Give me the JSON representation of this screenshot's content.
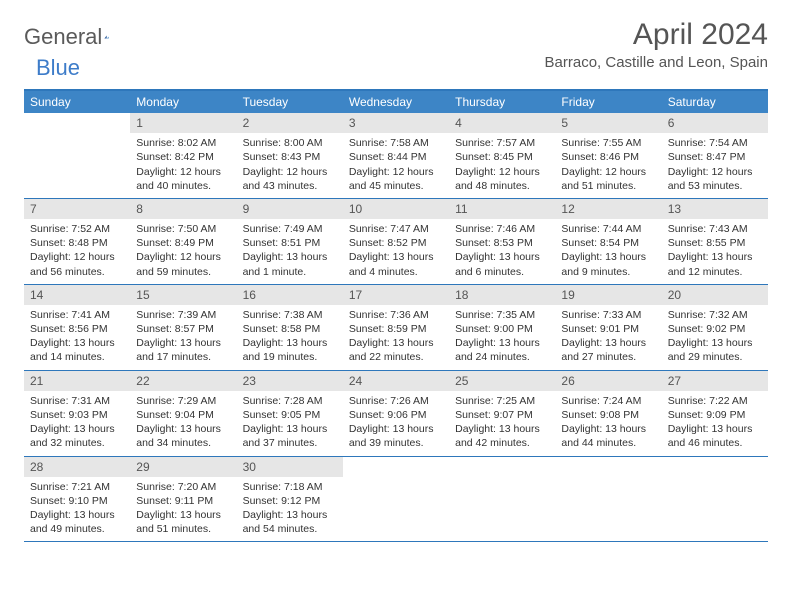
{
  "brand": {
    "part1": "General",
    "part2": "Blue"
  },
  "title": "April 2024",
  "location": "Barraco, Castille and Leon, Spain",
  "colors": {
    "header_bar": "#3d85c6",
    "accent_line": "#2e77bb",
    "daynum_bg": "#e6e6e6",
    "text": "#333333",
    "title_text": "#555555"
  },
  "days_of_week": [
    "Sunday",
    "Monday",
    "Tuesday",
    "Wednesday",
    "Thursday",
    "Friday",
    "Saturday"
  ],
  "weeks": [
    [
      {
        "n": "",
        "sr": "",
        "ss": "",
        "d1": "",
        "d2": ""
      },
      {
        "n": "1",
        "sr": "Sunrise: 8:02 AM",
        "ss": "Sunset: 8:42 PM",
        "d1": "Daylight: 12 hours",
        "d2": "and 40 minutes."
      },
      {
        "n": "2",
        "sr": "Sunrise: 8:00 AM",
        "ss": "Sunset: 8:43 PM",
        "d1": "Daylight: 12 hours",
        "d2": "and 43 minutes."
      },
      {
        "n": "3",
        "sr": "Sunrise: 7:58 AM",
        "ss": "Sunset: 8:44 PM",
        "d1": "Daylight: 12 hours",
        "d2": "and 45 minutes."
      },
      {
        "n": "4",
        "sr": "Sunrise: 7:57 AM",
        "ss": "Sunset: 8:45 PM",
        "d1": "Daylight: 12 hours",
        "d2": "and 48 minutes."
      },
      {
        "n": "5",
        "sr": "Sunrise: 7:55 AM",
        "ss": "Sunset: 8:46 PM",
        "d1": "Daylight: 12 hours",
        "d2": "and 51 minutes."
      },
      {
        "n": "6",
        "sr": "Sunrise: 7:54 AM",
        "ss": "Sunset: 8:47 PM",
        "d1": "Daylight: 12 hours",
        "d2": "and 53 minutes."
      }
    ],
    [
      {
        "n": "7",
        "sr": "Sunrise: 7:52 AM",
        "ss": "Sunset: 8:48 PM",
        "d1": "Daylight: 12 hours",
        "d2": "and 56 minutes."
      },
      {
        "n": "8",
        "sr": "Sunrise: 7:50 AM",
        "ss": "Sunset: 8:49 PM",
        "d1": "Daylight: 12 hours",
        "d2": "and 59 minutes."
      },
      {
        "n": "9",
        "sr": "Sunrise: 7:49 AM",
        "ss": "Sunset: 8:51 PM",
        "d1": "Daylight: 13 hours",
        "d2": "and 1 minute."
      },
      {
        "n": "10",
        "sr": "Sunrise: 7:47 AM",
        "ss": "Sunset: 8:52 PM",
        "d1": "Daylight: 13 hours",
        "d2": "and 4 minutes."
      },
      {
        "n": "11",
        "sr": "Sunrise: 7:46 AM",
        "ss": "Sunset: 8:53 PM",
        "d1": "Daylight: 13 hours",
        "d2": "and 6 minutes."
      },
      {
        "n": "12",
        "sr": "Sunrise: 7:44 AM",
        "ss": "Sunset: 8:54 PM",
        "d1": "Daylight: 13 hours",
        "d2": "and 9 minutes."
      },
      {
        "n": "13",
        "sr": "Sunrise: 7:43 AM",
        "ss": "Sunset: 8:55 PM",
        "d1": "Daylight: 13 hours",
        "d2": "and 12 minutes."
      }
    ],
    [
      {
        "n": "14",
        "sr": "Sunrise: 7:41 AM",
        "ss": "Sunset: 8:56 PM",
        "d1": "Daylight: 13 hours",
        "d2": "and 14 minutes."
      },
      {
        "n": "15",
        "sr": "Sunrise: 7:39 AM",
        "ss": "Sunset: 8:57 PM",
        "d1": "Daylight: 13 hours",
        "d2": "and 17 minutes."
      },
      {
        "n": "16",
        "sr": "Sunrise: 7:38 AM",
        "ss": "Sunset: 8:58 PM",
        "d1": "Daylight: 13 hours",
        "d2": "and 19 minutes."
      },
      {
        "n": "17",
        "sr": "Sunrise: 7:36 AM",
        "ss": "Sunset: 8:59 PM",
        "d1": "Daylight: 13 hours",
        "d2": "and 22 minutes."
      },
      {
        "n": "18",
        "sr": "Sunrise: 7:35 AM",
        "ss": "Sunset: 9:00 PM",
        "d1": "Daylight: 13 hours",
        "d2": "and 24 minutes."
      },
      {
        "n": "19",
        "sr": "Sunrise: 7:33 AM",
        "ss": "Sunset: 9:01 PM",
        "d1": "Daylight: 13 hours",
        "d2": "and 27 minutes."
      },
      {
        "n": "20",
        "sr": "Sunrise: 7:32 AM",
        "ss": "Sunset: 9:02 PM",
        "d1": "Daylight: 13 hours",
        "d2": "and 29 minutes."
      }
    ],
    [
      {
        "n": "21",
        "sr": "Sunrise: 7:31 AM",
        "ss": "Sunset: 9:03 PM",
        "d1": "Daylight: 13 hours",
        "d2": "and 32 minutes."
      },
      {
        "n": "22",
        "sr": "Sunrise: 7:29 AM",
        "ss": "Sunset: 9:04 PM",
        "d1": "Daylight: 13 hours",
        "d2": "and 34 minutes."
      },
      {
        "n": "23",
        "sr": "Sunrise: 7:28 AM",
        "ss": "Sunset: 9:05 PM",
        "d1": "Daylight: 13 hours",
        "d2": "and 37 minutes."
      },
      {
        "n": "24",
        "sr": "Sunrise: 7:26 AM",
        "ss": "Sunset: 9:06 PM",
        "d1": "Daylight: 13 hours",
        "d2": "and 39 minutes."
      },
      {
        "n": "25",
        "sr": "Sunrise: 7:25 AM",
        "ss": "Sunset: 9:07 PM",
        "d1": "Daylight: 13 hours",
        "d2": "and 42 minutes."
      },
      {
        "n": "26",
        "sr": "Sunrise: 7:24 AM",
        "ss": "Sunset: 9:08 PM",
        "d1": "Daylight: 13 hours",
        "d2": "and 44 minutes."
      },
      {
        "n": "27",
        "sr": "Sunrise: 7:22 AM",
        "ss": "Sunset: 9:09 PM",
        "d1": "Daylight: 13 hours",
        "d2": "and 46 minutes."
      }
    ],
    [
      {
        "n": "28",
        "sr": "Sunrise: 7:21 AM",
        "ss": "Sunset: 9:10 PM",
        "d1": "Daylight: 13 hours",
        "d2": "and 49 minutes."
      },
      {
        "n": "29",
        "sr": "Sunrise: 7:20 AM",
        "ss": "Sunset: 9:11 PM",
        "d1": "Daylight: 13 hours",
        "d2": "and 51 minutes."
      },
      {
        "n": "30",
        "sr": "Sunrise: 7:18 AM",
        "ss": "Sunset: 9:12 PM",
        "d1": "Daylight: 13 hours",
        "d2": "and 54 minutes."
      },
      {
        "n": "",
        "sr": "",
        "ss": "",
        "d1": "",
        "d2": ""
      },
      {
        "n": "",
        "sr": "",
        "ss": "",
        "d1": "",
        "d2": ""
      },
      {
        "n": "",
        "sr": "",
        "ss": "",
        "d1": "",
        "d2": ""
      },
      {
        "n": "",
        "sr": "",
        "ss": "",
        "d1": "",
        "d2": ""
      }
    ]
  ]
}
